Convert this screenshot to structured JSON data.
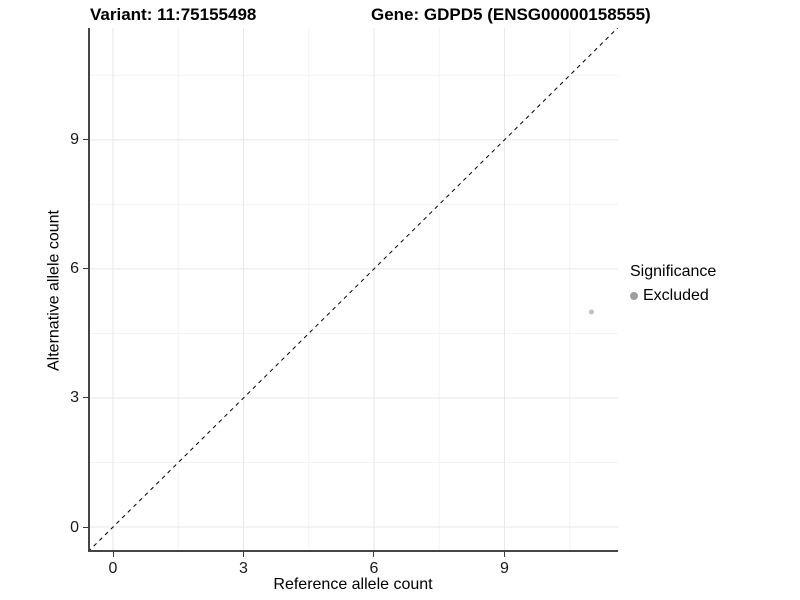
{
  "titles": {
    "variant": "Variant: 11:75155498",
    "gene": "Gene: GDPD5 (ENSG00000158555)"
  },
  "axes": {
    "x_label": "Reference allele count",
    "y_label": "Alternative allele count"
  },
  "legend": {
    "title": "Significance",
    "items": [
      {
        "label": "Excluded",
        "color": "#9e9e9e"
      }
    ]
  },
  "chart_data": {
    "type": "scatter",
    "title": "Variant: 11:75155498   Gene: GDPD5 (ENSG00000158555)",
    "xlabel": "Reference allele count",
    "ylabel": "Alternative allele count",
    "xlim": [
      -0.575,
      11.61
    ],
    "ylim": [
      -0.58,
      11.6
    ],
    "x_ticks": [
      0,
      3,
      6,
      9
    ],
    "y_ticks": [
      0,
      3,
      6,
      9
    ],
    "x_minor_ticks": [
      1.5,
      4.5,
      7.5,
      10.5
    ],
    "y_minor_ticks": [
      1.5,
      4.5,
      7.5,
      10.5
    ],
    "grid": true,
    "legend_position": "right",
    "series": [
      {
        "name": "Excluded",
        "color": "#c0c0c0",
        "point_radius": 2.5,
        "points": [
          {
            "x": 11,
            "y": 5
          }
        ]
      }
    ],
    "reference_line": {
      "type": "abline",
      "slope": 1,
      "intercept": 0,
      "style": "dashed",
      "color": "#000000"
    }
  },
  "style": {
    "major_grid_color": "#e7e7e7",
    "minor_grid_color": "#f3f3f3",
    "axis_line_color": "#454545",
    "background": "#ffffff"
  }
}
